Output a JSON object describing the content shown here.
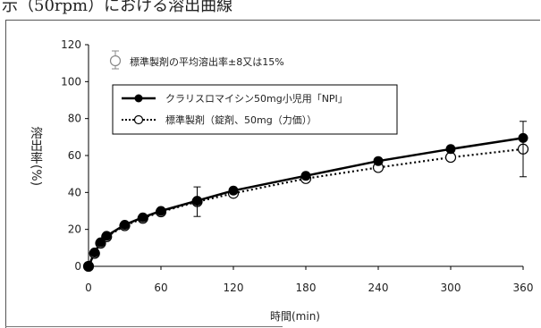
{
  "header": {
    "text": "示（50rpm）における溶出曲線"
  },
  "legend": {
    "errorbar_label": "標準製剤の平均溶出率±8又は15%",
    "series1_label": "クラリスロマイシン50mg小児用「NPI」",
    "series2_label": "標準製剤（錠剤、50mg（力価））"
  },
  "chart_data": {
    "type": "line",
    "xlabel": "時間(min)",
    "ylabel": "溶出率(%)",
    "xlim": [
      0,
      360
    ],
    "ylim": [
      0,
      120
    ],
    "xticks": [
      0,
      60,
      120,
      180,
      240,
      300,
      360
    ],
    "yticks": [
      0,
      20,
      40,
      60,
      80,
      100,
      120
    ],
    "grid": false,
    "series": [
      {
        "name": "クラリスロマイシン50mg小児用「NPI」",
        "style": "solid-filled",
        "x": [
          0,
          5,
          10,
          15,
          30,
          45,
          60,
          90,
          120,
          180,
          240,
          300,
          360
        ],
        "y": [
          0,
          7.5,
          13,
          16.5,
          22.5,
          26.5,
          30,
          35.5,
          41,
          49,
          57,
          63.5,
          69.5
        ]
      },
      {
        "name": "標準製剤（錠剤、50mg（力価））",
        "style": "dotted-open",
        "x": [
          0,
          5,
          10,
          15,
          30,
          45,
          60,
          90,
          120,
          180,
          240,
          300,
          360
        ],
        "y": [
          0,
          7,
          12.5,
          16,
          22,
          26,
          29.5,
          35,
          39.5,
          47.5,
          53.5,
          59,
          63.5
        ],
        "errorbars": [
          {
            "x": 90,
            "low": 27,
            "high": 43
          },
          {
            "x": 360,
            "low": 48.5,
            "high": 78.5
          }
        ]
      }
    ]
  }
}
